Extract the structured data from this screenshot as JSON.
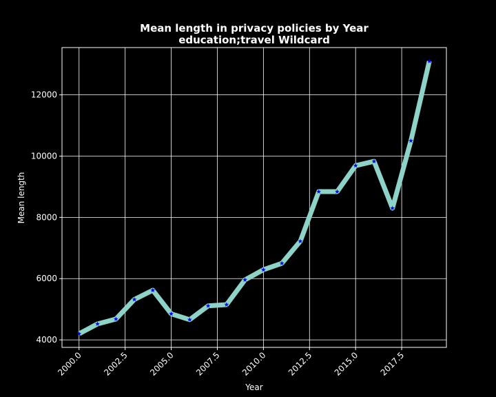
{
  "chart_data": {
    "type": "line",
    "title_line1": "Mean length in privacy policies by Year",
    "title_line2": "education;travel Wildcard",
    "xlabel": "Year",
    "ylabel": "Mean length",
    "x": [
      2000,
      2001,
      2002,
      2003,
      2004,
      2005,
      2006,
      2007,
      2008,
      2009,
      2010,
      2011,
      2012,
      2013,
      2014,
      2015,
      2016,
      2017,
      2018,
      2019
    ],
    "series": [
      {
        "values": [
          4200,
          4520,
          4680,
          5320,
          5620,
          4850,
          4660,
          5110,
          5150,
          5960,
          6290,
          6500,
          7220,
          8840,
          8840,
          9690,
          9830,
          8300,
          10500,
          13100
        ]
      }
    ],
    "xlim": [
      1999.075,
      2019.925
    ],
    "ylim": [
      3755,
      13545
    ],
    "xticks": [
      2000.0,
      2002.5,
      2005.0,
      2007.5,
      2010.0,
      2012.5,
      2015.0,
      2017.5
    ],
    "xtick_labels": [
      "2000.0",
      "2002.5",
      "2005.0",
      "2007.5",
      "2010.0",
      "2012.5",
      "2015.0",
      "2017.5"
    ],
    "yticks": [
      4000,
      6000,
      8000,
      10000,
      12000
    ],
    "ytick_labels": [
      "4000",
      "6000",
      "8000",
      "10000",
      "12000"
    ],
    "grid": true,
    "colors": {
      "background": "#000000",
      "line": "#8dd3c7",
      "marker": "#0000ff",
      "grid": "#ffffff",
      "text": "#ffffff"
    },
    "marker": "star-icon"
  }
}
